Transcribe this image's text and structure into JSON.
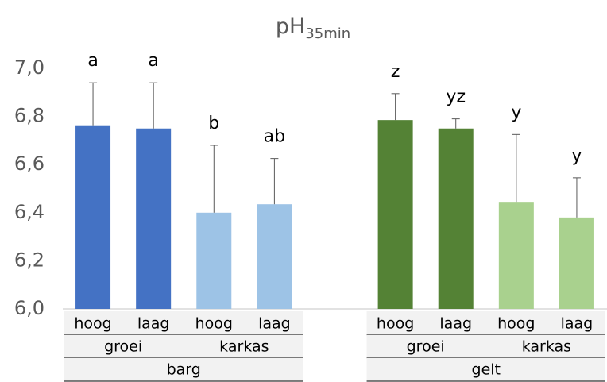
{
  "chart_data": {
    "type": "bar",
    "title": {
      "main": "pH",
      "sub": "35min"
    },
    "categories": [
      "hoog",
      "laag",
      "hoog",
      "laag",
      null,
      "hoog",
      "laag",
      "hoog",
      "laag"
    ],
    "level2": [
      "groei",
      "karkas",
      null,
      "groei",
      "karkas"
    ],
    "level3": [
      "barg",
      null,
      "gelt"
    ],
    "values": [
      6.76,
      6.75,
      6.4,
      6.435,
      null,
      6.785,
      6.75,
      6.445,
      6.38
    ],
    "errors": [
      0.18,
      0.19,
      0.28,
      0.19,
      null,
      0.11,
      0.04,
      0.28,
      0.165
    ],
    "annotations": [
      "a",
      "a",
      "b",
      "ab",
      null,
      "z",
      "yz",
      "y",
      "y"
    ],
    "colors": [
      "#4472c4",
      "#4472c4",
      "#9dc3e6",
      "#9dc3e6",
      null,
      "#548235",
      "#548235",
      "#a9d18e",
      "#a9d18e"
    ],
    "ylim": [
      6.0,
      7.0
    ],
    "yticks": [
      {
        "value": 6.0,
        "label": "6,0"
      },
      {
        "value": 6.2,
        "label": "6,2"
      },
      {
        "value": 6.4,
        "label": "6,4"
      },
      {
        "value": 6.6,
        "label": "6,6"
      },
      {
        "value": 6.8,
        "label": "6,8"
      },
      {
        "value": 7.0,
        "label": "7,0"
      }
    ],
    "grid": false
  }
}
